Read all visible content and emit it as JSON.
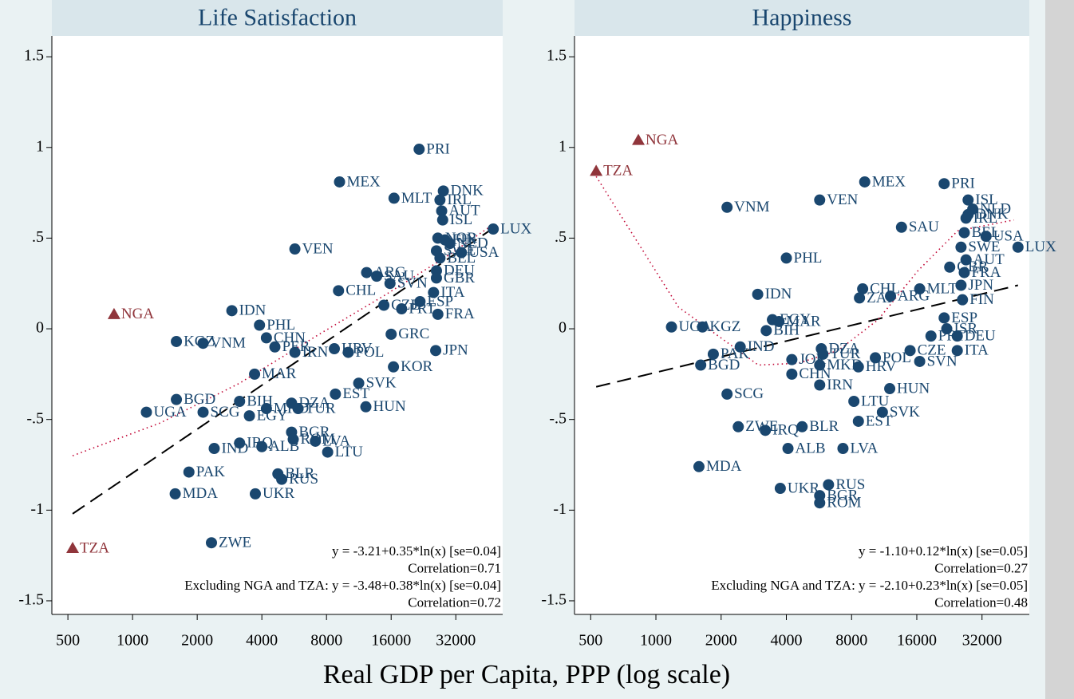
{
  "xlabel": "Real GDP per Capita, PPP (log scale)",
  "chart_data": [
    {
      "type": "scatter",
      "title": "Life Satisfaction",
      "xlim": [
        421,
        52900
      ],
      "ylim": [
        -1.575,
        1.615
      ],
      "xlog": true,
      "xticks": [
        500,
        1000,
        2000,
        4000,
        8000,
        16000,
        32000
      ],
      "yticks": [
        1.5,
        1,
        {
          "value": 0.5,
          "label": ".5"
        },
        0,
        {
          "value": -0.5,
          "label": "-.5"
        },
        -1,
        -1.5
      ],
      "annotations": [
        "y = -3.21+0.35*ln(x) [se=0.04]",
        "Correlation=0.71",
        "Excluding NGA and TZA: y = -3.48+0.38*ln(x) [se=0.04]",
        "Correlation=0.72"
      ],
      "series": [
        {
          "color": "#1a476f",
          "marker": "circle",
          "labels": [
            "PRI",
            "MEX",
            "MLT",
            "DNK",
            "IRL",
            "AUT",
            "ISL",
            "NOR",
            "FIN",
            "NLD",
            "SWE",
            "USA",
            "BEL",
            "LUX",
            "VEN",
            "ARG",
            "SAU",
            "SVN",
            "DEU",
            "GBR",
            "CHL",
            "ITA",
            "ESP",
            "CZE",
            "PRT",
            "FRA",
            "GRC",
            "JPN",
            "KOR",
            "IDN",
            "PHL",
            "KGZ",
            "VNM",
            "CHN",
            "PER",
            "IRN",
            "HRV",
            "POL",
            "MAR",
            "SVK",
            "EST",
            "HUN",
            "BGD",
            "UGA",
            "SCG",
            "BIH",
            "EGY",
            "MKD",
            "DZA",
            "TUR",
            "BGR",
            "ROM",
            "LVA",
            "IRQ",
            "ALB",
            "IND",
            "LTU",
            "PAK",
            "BLR",
            "RUS",
            "MDA",
            "UKR",
            "ZWE"
          ],
          "x": [
            21600,
            9200,
            16500,
            28000,
            27000,
            27500,
            27800,
            26400,
            28500,
            30000,
            26000,
            34000,
            27000,
            47800,
            5700,
            12300,
            13700,
            15800,
            26000,
            26000,
            9100,
            25200,
            21800,
            14800,
            17900,
            26400,
            16000,
            25800,
            16400,
            2900,
            3900,
            1600,
            2130,
            4200,
            4600,
            5700,
            8700,
            10100,
            3700,
            11300,
            8800,
            12200,
            1600,
            1160,
            2130,
            3150,
            3500,
            4200,
            5500,
            5900,
            5500,
            5600,
            7100,
            3150,
            4000,
            2400,
            8100,
            1830,
            4750,
            4950,
            1580,
            3730,
            2330
          ],
          "values": [
            0.99,
            0.81,
            0.72,
            0.76,
            0.71,
            0.65,
            0.6,
            0.5,
            0.49,
            0.47,
            0.43,
            0.42,
            0.39,
            0.55,
            0.44,
            0.31,
            0.29,
            0.25,
            0.32,
            0.28,
            0.21,
            0.2,
            0.15,
            0.13,
            0.11,
            0.08,
            -0.03,
            -0.12,
            -0.21,
            0.1,
            0.02,
            -0.07,
            -0.08,
            -0.05,
            -0.1,
            -0.13,
            -0.11,
            -0.13,
            -0.25,
            -0.3,
            -0.36,
            -0.43,
            -0.39,
            -0.46,
            -0.46,
            -0.4,
            -0.48,
            -0.44,
            -0.41,
            -0.44,
            -0.57,
            -0.61,
            -0.62,
            -0.63,
            -0.65,
            -0.66,
            -0.68,
            -0.79,
            -0.8,
            -0.83,
            -0.91,
            -0.91,
            -1.18
          ]
        },
        {
          "color": "#90353b",
          "marker": "triangle",
          "labels": [
            "NGA",
            "TZA"
          ],
          "x": [
            820,
            526
          ],
          "values": [
            0.08,
            -1.21
          ]
        }
      ],
      "lines": [
        {
          "style": "dashed",
          "color": "#000000",
          "x": [
            526,
            45800
          ],
          "values": [
            -1.02,
            0.54
          ]
        },
        {
          "style": "dotted",
          "color": "#c10534",
          "x": [
            526,
            1340,
            3150,
            7400,
            14700,
            29100,
            45800
          ],
          "values": [
            -0.7,
            -0.52,
            -0.3,
            -0.03,
            0.18,
            0.4,
            0.56
          ]
        }
      ]
    },
    {
      "type": "scatter",
      "title": "Happiness",
      "xlim": [
        421,
        52900
      ],
      "ylim": [
        -1.575,
        1.615
      ],
      "xlog": true,
      "xticks": [
        500,
        1000,
        2000,
        4000,
        8000,
        16000,
        32000
      ],
      "yticks": [
        1.5,
        1,
        {
          "value": 0.5,
          "label": ".5"
        },
        0,
        {
          "value": -0.5,
          "label": "-.5"
        },
        -1,
        -1.5
      ],
      "annotations": [
        "y = -1.10+0.12*ln(x) [se=0.05]",
        "Correlation=0.27",
        "Excluding NGA and TZA: y = -2.10+0.23*ln(x) [se=0.05]",
        "Correlation=0.48"
      ],
      "series": [
        {
          "color": "#1a476f",
          "marker": "circle",
          "labels": [
            "PRI",
            "MEX",
            "VNM",
            "VEN",
            "ISL",
            "NLD",
            "DNK",
            "IRL",
            "SAU",
            "BEL",
            "USA",
            "LUX",
            "SWE",
            "AUT",
            "PHL",
            "GBR",
            "FRA",
            "IDN",
            "CHL",
            "ZAF",
            "MLT",
            "ARG",
            "JPN",
            "FIN",
            "ESP",
            "KGZ",
            "UGA",
            "EGY",
            "MAR",
            "BIH",
            "ISR",
            "PRT",
            "DEU",
            "PAK",
            "IND",
            "BGD",
            "JOR",
            "DZA",
            "TUR",
            "MKD",
            "CHN",
            "POL",
            "CZE",
            "SVN",
            "ITA",
            "HRV",
            "IRN",
            "HUN",
            "LTU",
            "SVK",
            "EST",
            "SCG",
            "ZWE",
            "IRQ",
            "BLR",
            "ALB",
            "LVA",
            "MDA",
            "RUS",
            "UKR",
            "BGR",
            "ROM"
          ],
          "x": [
            21400,
            9200,
            2130,
            5700,
            27600,
            29000,
            27600,
            27000,
            13600,
            26500,
            33400,
            46900,
            25600,
            27000,
            4000,
            22700,
            26500,
            2950,
            9000,
            8700,
            16500,
            12100,
            25600,
            26000,
            21400,
            1640,
            1180,
            3450,
            3700,
            3230,
            22000,
            18600,
            24600,
            1840,
            2450,
            1610,
            4240,
            5800,
            5900,
            5700,
            4240,
            10300,
            14900,
            16500,
            24600,
            8600,
            5700,
            12000,
            8200,
            11100,
            8600,
            2130,
            2400,
            3200,
            4730,
            4070,
            7300,
            1580,
            6260,
            3750,
            5700,
            5700
          ],
          "values": [
            0.8,
            0.81,
            0.67,
            0.71,
            0.71,
            0.66,
            0.63,
            0.61,
            0.56,
            0.53,
            0.51,
            0.45,
            0.45,
            0.38,
            0.39,
            0.34,
            0.31,
            0.19,
            0.22,
            0.17,
            0.22,
            0.18,
            0.24,
            0.16,
            0.06,
            0.01,
            0.01,
            0.05,
            0.04,
            -0.01,
            0.0,
            -0.04,
            -0.04,
            -0.14,
            -0.1,
            -0.2,
            -0.17,
            -0.11,
            -0.14,
            -0.2,
            -0.25,
            -0.16,
            -0.12,
            -0.18,
            -0.12,
            -0.21,
            -0.31,
            -0.33,
            -0.4,
            -0.46,
            -0.51,
            -0.36,
            -0.54,
            -0.56,
            -0.54,
            -0.66,
            -0.66,
            -0.76,
            -0.86,
            -0.88,
            -0.92,
            -0.96
          ]
        },
        {
          "color": "#90353b",
          "marker": "triangle",
          "labels": [
            "NGA",
            "TZA"
          ],
          "x": [
            830,
            530
          ],
          "values": [
            1.04,
            0.87
          ]
        }
      ],
      "lines": [
        {
          "style": "dashed",
          "color": "#000000",
          "x": [
            530,
            46900
          ],
          "values": [
            -0.32,
            0.24
          ]
        },
        {
          "style": "dotted",
          "color": "#c10534",
          "x": [
            530,
            1270,
            2970,
            4540,
            6930,
            10600,
            16200,
            24700,
            44900
          ],
          "values": [
            0.84,
            0.12,
            -0.2,
            -0.19,
            -0.12,
            0.05,
            0.32,
            0.54,
            0.6
          ]
        }
      ]
    }
  ]
}
